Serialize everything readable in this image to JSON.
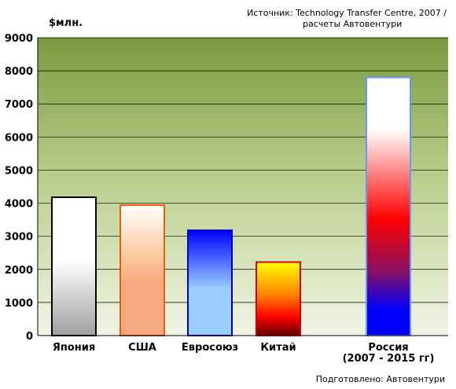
{
  "source": {
    "line1": "Источник: Technology Transfer Centre, 2007 /",
    "line2": "расчеты Автовентури"
  },
  "credit": "Подготовлено: Автовентури",
  "colors": {
    "plot_top": "#7a9a40",
    "plot_bottom": "#f2f5e6"
  },
  "chart_data": {
    "type": "bar",
    "ylabel": "$млн.",
    "ylim": [
      0,
      9000
    ],
    "yticks": [
      "0",
      "1000",
      "2000",
      "3000",
      "4000",
      "5000",
      "6000",
      "7000",
      "8000",
      "9000"
    ],
    "grid": true,
    "categories": [
      {
        "label": [
          "Япония"
        ]
      },
      {
        "label": [
          "США"
        ]
      },
      {
        "label": [
          "Евросоюз"
        ]
      },
      {
        "label": [
          "Китай"
        ]
      },
      {
        "label": [
          "Россия",
          "(2007 - 2015 гг)"
        ]
      }
    ],
    "values": [
      4180,
      3940,
      3180,
      2220,
      7800
    ]
  }
}
